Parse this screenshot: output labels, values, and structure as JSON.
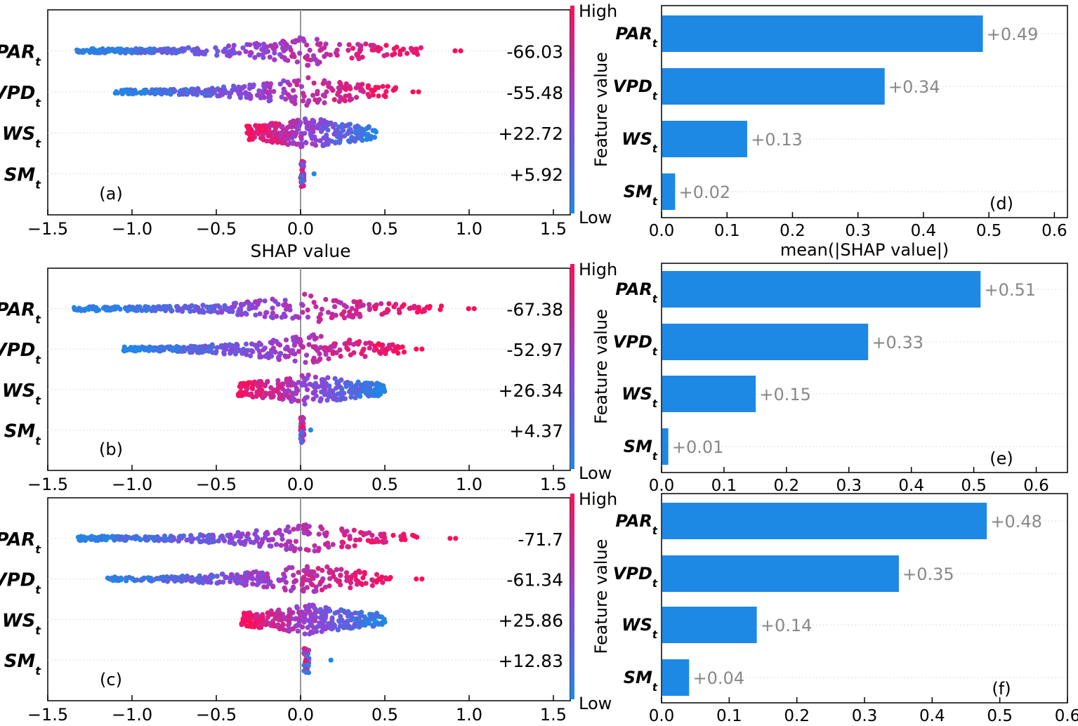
{
  "chart_data": [
    {
      "type": "scatter",
      "panel": "(a)",
      "features": [
        "PAR",
        "VPD",
        "WS",
        "SM"
      ],
      "feature_subscript": "t",
      "side_labels": [
        "-66.03",
        "-55.48",
        "+22.72",
        "+5.92"
      ],
      "xlim": [
        -1.5,
        1.6
      ],
      "xticks": [
        -1.5,
        -1.0,
        -0.5,
        0.0,
        0.5,
        1.0,
        1.5
      ],
      "xtick_labels": [
        "−1.5",
        "−1.0",
        "−0.5",
        "0.0",
        "0.5",
        "1.0",
        "1.5"
      ],
      "xlabel": "SHAP value",
      "ranges": [
        [
          -1.33,
          0.72,
          0.95
        ],
        [
          -1.1,
          0.58,
          0.7
        ],
        [
          -0.32,
          0.45,
          null
        ],
        [
          0.0,
          0.02,
          0.08
        ]
      ],
      "colorbar": {
        "title": "Feature value",
        "high": "High",
        "low": "Low"
      }
    },
    {
      "type": "scatter",
      "panel": "(b)",
      "features": [
        "PAR",
        "VPD",
        "WS",
        "SM"
      ],
      "feature_subscript": "t",
      "side_labels": [
        "-67.38",
        "-52.97",
        "+26.34",
        "+4.37"
      ],
      "xlim": [
        -1.5,
        1.6
      ],
      "xticks": [
        -1.5,
        -1.0,
        -0.5,
        0.0,
        0.5,
        1.0,
        1.5
      ],
      "xtick_labels": [
        "−1.5",
        "−1.0",
        "−0.5",
        "0.0",
        "0.5",
        "1.0",
        "1.5"
      ],
      "xlabel": "",
      "ranges": [
        [
          -1.35,
          0.85,
          1.03
        ],
        [
          -1.05,
          0.62,
          0.72
        ],
        [
          -0.37,
          0.5,
          null
        ],
        [
          0.0,
          0.02,
          0.06
        ]
      ],
      "colorbar": {
        "title": "Feature value",
        "high": "High",
        "low": "Low"
      }
    },
    {
      "type": "scatter",
      "panel": "(c)",
      "features": [
        "PAR",
        "VPD",
        "WS",
        "SM"
      ],
      "feature_subscript": "t",
      "side_labels": [
        "-71.7",
        "-61.34",
        "+25.86",
        "+12.83"
      ],
      "xlim": [
        -1.5,
        1.6
      ],
      "xticks": [
        -1.5,
        -1.0,
        -0.5,
        0.0,
        0.5,
        1.0,
        1.5
      ],
      "xtick_labels": [
        "−1.5",
        "−1.0",
        "−0.5",
        "0.0",
        "0.5",
        "1.0",
        "1.5"
      ],
      "xlabel": "",
      "ranges": [
        [
          -1.33,
          0.72,
          0.92
        ],
        [
          -1.15,
          0.55,
          0.72
        ],
        [
          -0.35,
          0.5,
          null
        ],
        [
          0.02,
          0.05,
          0.18
        ]
      ],
      "colorbar": {
        "title": "Feature value",
        "high": "High",
        "low": "Low"
      }
    },
    {
      "type": "bar",
      "orientation": "horizontal",
      "panel": "(d)",
      "categories": [
        "PAR",
        "VPD",
        "WS",
        "SM"
      ],
      "feature_subscript": "t",
      "values": [
        0.49,
        0.34,
        0.13,
        0.02
      ],
      "value_labels": [
        "+0.49",
        "+0.34",
        "+0.13",
        "+0.02"
      ],
      "xlim": [
        0,
        0.62
      ],
      "xticks": [
        0.0,
        0.1,
        0.2,
        0.3,
        0.4,
        0.5,
        0.6
      ],
      "xtick_labels": [
        "0.0",
        "0.1",
        "0.2",
        "0.3",
        "0.4",
        "0.5",
        "0.6"
      ],
      "xlabel": "mean(|SHAP value|)"
    },
    {
      "type": "bar",
      "orientation": "horizontal",
      "panel": "(e)",
      "categories": [
        "PAR",
        "VPD",
        "WS",
        "SM"
      ],
      "feature_subscript": "t",
      "values": [
        0.51,
        0.33,
        0.15,
        0.01
      ],
      "value_labels": [
        "+0.51",
        "+0.33",
        "+0.15",
        "+0.01"
      ],
      "xlim": [
        0,
        0.65
      ],
      "xticks": [
        0.0,
        0.1,
        0.2,
        0.3,
        0.4,
        0.5,
        0.6
      ],
      "xtick_labels": [
        "0.0",
        "0.1",
        "0.2",
        "0.3",
        "0.4",
        "0.5",
        "0.6"
      ],
      "xlabel": ""
    },
    {
      "type": "bar",
      "orientation": "horizontal",
      "panel": "(f)",
      "categories": [
        "PAR",
        "VPD",
        "WS",
        "SM"
      ],
      "feature_subscript": "t",
      "values": [
        0.48,
        0.35,
        0.14,
        0.04
      ],
      "value_labels": [
        "+0.48",
        "+0.35",
        "+0.14",
        "+0.04"
      ],
      "xlim": [
        0,
        0.6
      ],
      "xticks": [
        0.0,
        0.1,
        0.2,
        0.3,
        0.4,
        0.5,
        0.6
      ],
      "xtick_labels": [
        "0.0",
        "0.1",
        "0.2",
        "0.3",
        "0.4",
        "0.5",
        "0.6"
      ],
      "xlabel": ""
    }
  ],
  "colors": {
    "bar": "#1e88e5",
    "low": "#1e88e5",
    "mid": "#8e44d8",
    "high": "#ff0d57",
    "value_label": "#888888",
    "axis": "#000000",
    "zero_line": "#999999",
    "grid": "#dddddd"
  }
}
